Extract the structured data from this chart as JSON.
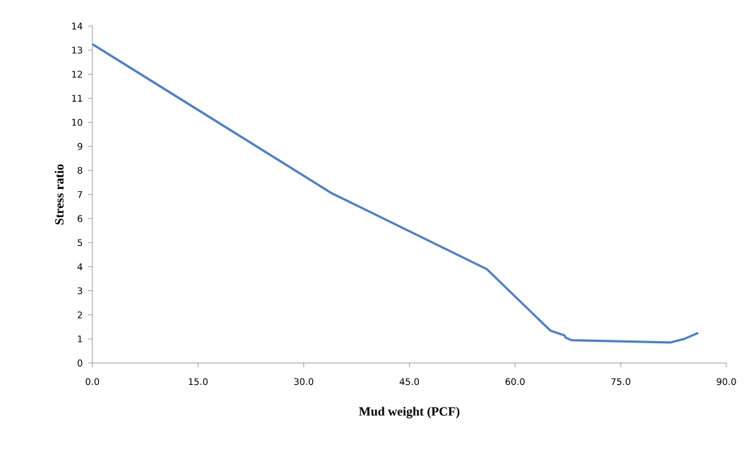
{
  "chart_data": {
    "type": "line",
    "xlabel": "Mud weight (PCF)",
    "ylabel": "Stress ratio",
    "x": [
      0,
      34,
      56,
      65,
      67,
      67.2,
      68,
      75,
      82,
      84,
      86
    ],
    "series": [
      {
        "color": "#4f81bd",
        "values": [
          13.25,
          7.05,
          3.9,
          1.35,
          1.15,
          1.05,
          0.95,
          0.9,
          0.85,
          1.0,
          1.25
        ]
      }
    ],
    "xlim": [
      0,
      90
    ],
    "ylim": [
      0,
      14
    ],
    "xticks": [
      {
        "value": 0,
        "label": "0.0"
      },
      {
        "value": 15,
        "label": "15.0"
      },
      {
        "value": 30,
        "label": "30.0"
      },
      {
        "value": 45,
        "label": "45.0"
      },
      {
        "value": 60,
        "label": "60.0"
      },
      {
        "value": 75,
        "label": "75.0"
      },
      {
        "value": 90,
        "label": "90.0"
      }
    ],
    "yticks": [
      0,
      1,
      2,
      3,
      4,
      5,
      6,
      7,
      8,
      9,
      10,
      11,
      12,
      13,
      14
    ],
    "marker": "none",
    "line_style": "solid"
  }
}
